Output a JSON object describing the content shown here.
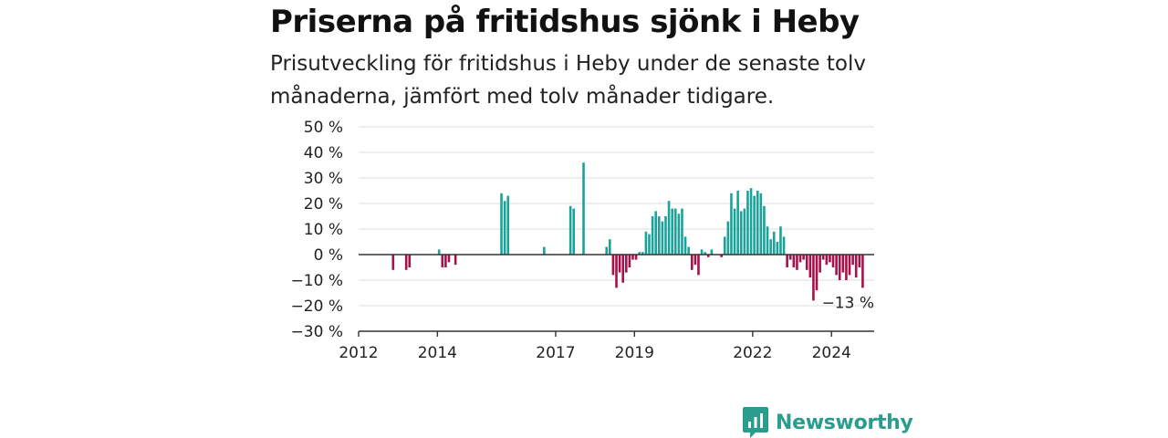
{
  "header": {
    "title": "Priserna på fritidshus sjönk i Heby",
    "subtitle": "Prisutveckling för fritidshus i Heby under de senaste tolv månaderna, jämfört med tolv månader tidigare."
  },
  "brand": {
    "name": "Newsworthy",
    "color": "#2a9d8f"
  },
  "chart_data": {
    "type": "bar",
    "title": "Priserna på fritidshus sjönk i Heby",
    "subtitle": "Prisutveckling för fritidshus i Heby under de senaste tolv månaderna, jämfört med tolv månader tidigare.",
    "xlabel": "",
    "ylabel": "",
    "ylim": [
      -30,
      50
    ],
    "y_ticks": [
      "50 %",
      "40 %",
      "30 %",
      "20 %",
      "10 %",
      "0 %",
      "−10 %",
      "−20 %",
      "−30 %"
    ],
    "x_ticks": [
      "2012",
      "2014",
      "2017",
      "2019",
      "2022",
      "2024"
    ],
    "grid": true,
    "colors": {
      "positive": "#1aa39a",
      "negative": "#a6124c",
      "grid": "#dddddd",
      "axis": "#333333"
    },
    "last_value_label": "−13 %",
    "series": [
      {
        "values": [
          {
            "x": "2012-11",
            "y": -6
          },
          {
            "x": "2013-03",
            "y": -6
          },
          {
            "x": "2013-04",
            "y": -5
          },
          {
            "x": "2014-01",
            "y": 2
          },
          {
            "x": "2014-02",
            "y": -5
          },
          {
            "x": "2014-03",
            "y": -5
          },
          {
            "x": "2014-04",
            "y": -3
          },
          {
            "x": "2014-06",
            "y": -4
          },
          {
            "x": "2015-08",
            "y": 24
          },
          {
            "x": "2015-09",
            "y": 21
          },
          {
            "x": "2015-10",
            "y": 23
          },
          {
            "x": "2016-09",
            "y": 3
          },
          {
            "x": "2017-05",
            "y": 19
          },
          {
            "x": "2017-06",
            "y": 18
          },
          {
            "x": "2017-09",
            "y": 36
          },
          {
            "x": "2018-04",
            "y": 3
          },
          {
            "x": "2018-05",
            "y": 6
          },
          {
            "x": "2018-06",
            "y": -8
          },
          {
            "x": "2018-07",
            "y": -13
          },
          {
            "x": "2018-08",
            "y": -7
          },
          {
            "x": "2018-09",
            "y": -11
          },
          {
            "x": "2018-10",
            "y": -7
          },
          {
            "x": "2018-11",
            "y": -5
          },
          {
            "x": "2018-12",
            "y": -2
          },
          {
            "x": "2019-01",
            "y": -2
          },
          {
            "x": "2019-02",
            "y": 1
          },
          {
            "x": "2019-03",
            "y": 1
          },
          {
            "x": "2019-04",
            "y": 9
          },
          {
            "x": "2019-05",
            "y": 8
          },
          {
            "x": "2019-06",
            "y": 15
          },
          {
            "x": "2019-07",
            "y": 17
          },
          {
            "x": "2019-08",
            "y": 15
          },
          {
            "x": "2019-09",
            "y": 13
          },
          {
            "x": "2019-10",
            "y": 15
          },
          {
            "x": "2019-11",
            "y": 21
          },
          {
            "x": "2019-12",
            "y": 18
          },
          {
            "x": "2020-01",
            "y": 18
          },
          {
            "x": "2020-02",
            "y": 16
          },
          {
            "x": "2020-03",
            "y": 18
          },
          {
            "x": "2020-04",
            "y": 7
          },
          {
            "x": "2020-05",
            "y": 3
          },
          {
            "x": "2020-06",
            "y": -6
          },
          {
            "x": "2020-07",
            "y": -4
          },
          {
            "x": "2020-08",
            "y": -8
          },
          {
            "x": "2020-09",
            "y": 2
          },
          {
            "x": "2020-10",
            "y": 1
          },
          {
            "x": "2020-11",
            "y": -1
          },
          {
            "x": "2020-12",
            "y": 2
          },
          {
            "x": "2021-03",
            "y": -1
          },
          {
            "x": "2021-04",
            "y": 7
          },
          {
            "x": "2021-05",
            "y": 13
          },
          {
            "x": "2021-06",
            "y": 24
          },
          {
            "x": "2021-07",
            "y": 18
          },
          {
            "x": "2021-08",
            "y": 25
          },
          {
            "x": "2021-09",
            "y": 17
          },
          {
            "x": "2021-10",
            "y": 18
          },
          {
            "x": "2021-11",
            "y": 25
          },
          {
            "x": "2021-12",
            "y": 26
          },
          {
            "x": "2022-01",
            "y": 23
          },
          {
            "x": "2022-02",
            "y": 25
          },
          {
            "x": "2022-03",
            "y": 24
          },
          {
            "x": "2022-04",
            "y": 19
          },
          {
            "x": "2022-05",
            "y": 11
          },
          {
            "x": "2022-06",
            "y": 6
          },
          {
            "x": "2022-07",
            "y": 9
          },
          {
            "x": "2022-08",
            "y": 5
          },
          {
            "x": "2022-09",
            "y": 11
          },
          {
            "x": "2022-10",
            "y": 7
          },
          {
            "x": "2022-11",
            "y": -5
          },
          {
            "x": "2022-12",
            "y": -2
          },
          {
            "x": "2023-01",
            "y": -5
          },
          {
            "x": "2023-02",
            "y": -6
          },
          {
            "x": "2023-03",
            "y": -3
          },
          {
            "x": "2023-04",
            "y": -2
          },
          {
            "x": "2023-05",
            "y": -6
          },
          {
            "x": "2023-06",
            "y": -9
          },
          {
            "x": "2023-07",
            "y": -18
          },
          {
            "x": "2023-08",
            "y": -14
          },
          {
            "x": "2023-09",
            "y": -7
          },
          {
            "x": "2023-10",
            "y": -2
          },
          {
            "x": "2023-11",
            "y": -4
          },
          {
            "x": "2023-12",
            "y": -3
          },
          {
            "x": "2024-01",
            "y": -5
          },
          {
            "x": "2024-02",
            "y": -8
          },
          {
            "x": "2024-03",
            "y": -10
          },
          {
            "x": "2024-04",
            "y": -7
          },
          {
            "x": "2024-05",
            "y": -10
          },
          {
            "x": "2024-06",
            "y": -8
          },
          {
            "x": "2024-07",
            "y": -4
          },
          {
            "x": "2024-08",
            "y": -9
          },
          {
            "x": "2024-09",
            "y": -5
          },
          {
            "x": "2024-10",
            "y": -13
          }
        ]
      }
    ]
  }
}
